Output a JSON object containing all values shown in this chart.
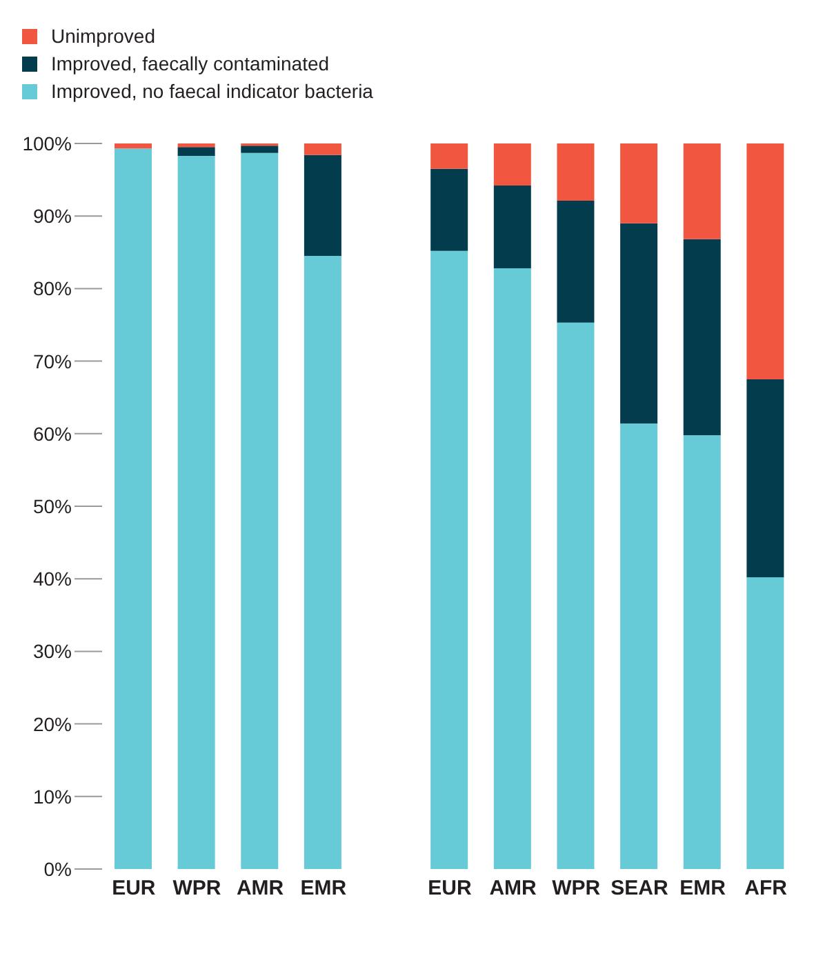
{
  "chart_data": {
    "type": "bar",
    "stacked": true,
    "legend": "top left",
    "grid": false,
    "categories": [
      "EUR",
      "WPR",
      "AMR",
      "EMR",
      null,
      "EUR",
      "AMR",
      "WPR",
      "SEAR",
      "EMR",
      "AFR"
    ],
    "ylim": [
      0,
      100
    ],
    "yticks": [
      {
        "value": 0,
        "label": "0%"
      },
      {
        "value": 10,
        "label": "10%"
      },
      {
        "value": 20,
        "label": "20%"
      },
      {
        "value": 30,
        "label": "30%"
      },
      {
        "value": 40,
        "label": "40%"
      },
      {
        "value": 50,
        "label": "50%"
      },
      {
        "value": 60,
        "label": "60%"
      },
      {
        "value": 70,
        "label": "70%"
      },
      {
        "value": 80,
        "label": "80%"
      },
      {
        "value": 90,
        "label": "90%"
      },
      {
        "value": 100,
        "label": "100%"
      }
    ],
    "series": [
      {
        "name": "Improved, no faecal indicator bacteria",
        "color": "#67cad7",
        "values": [
          99.3,
          98.3,
          98.7,
          84.5,
          null,
          85.2,
          82.8,
          75.3,
          61.4,
          59.8,
          40.2
        ]
      },
      {
        "name": "Improved, faecally contaminated",
        "color": "#033c4c",
        "values": [
          0,
          1.2,
          1.0,
          13.9,
          null,
          11.3,
          11.4,
          16.8,
          27.6,
          27.0,
          27.3
        ]
      },
      {
        "name": "Unimproved",
        "color": "#f15640",
        "values": [
          0.7,
          0.5,
          0.3,
          1.6,
          null,
          3.5,
          5.8,
          7.9,
          11.0,
          13.2,
          32.5
        ]
      }
    ]
  }
}
